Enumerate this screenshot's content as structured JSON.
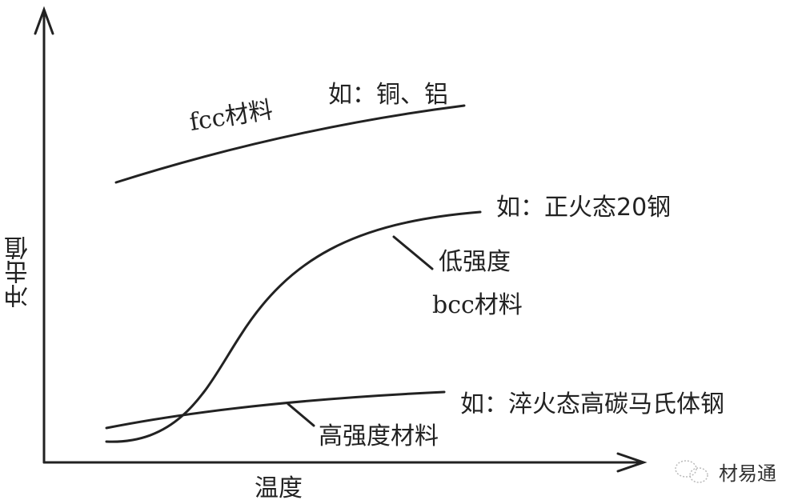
{
  "axes": {
    "y_label": "冲击值",
    "x_label": "温度"
  },
  "curves": {
    "fcc": {
      "label": "fcc材料",
      "example": "如：铜、铝"
    },
    "bcc_low": {
      "label_line1": "低强度",
      "label_line2": "bcc材料",
      "example": "如：正火态20钢"
    },
    "high_strength": {
      "label": "高强度材料",
      "example": "如：淬火态高碳马氏体钢"
    }
  },
  "watermark": {
    "text": "材易通",
    "icon": "wechat-icon"
  },
  "colors": {
    "line": "#222222",
    "background": "#ffffff"
  }
}
